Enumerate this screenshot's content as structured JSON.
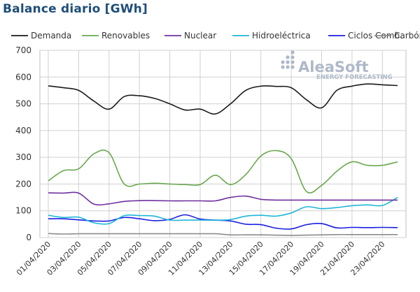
{
  "title": "Balance diario [GWh]",
  "logo": {
    "name": "AleaSoft",
    "tagline": "ENERGY FORECASTING",
    "color": "#aeb9c8"
  },
  "chart_data": {
    "type": "line",
    "title": "Balance diario [GWh]",
    "xlabel": "",
    "ylabel": "",
    "ylim": [
      0,
      700
    ],
    "yticks": [
      0,
      100,
      200,
      300,
      400,
      500,
      600,
      700
    ],
    "grid": true,
    "legend_position": "top",
    "x": [
      "01/04/2020",
      "02/04/2020",
      "03/04/2020",
      "04/04/2020",
      "05/04/2020",
      "06/04/2020",
      "07/04/2020",
      "08/04/2020",
      "09/04/2020",
      "10/04/2020",
      "11/04/2020",
      "12/04/2020",
      "13/04/2020",
      "14/04/2020",
      "15/04/2020",
      "16/04/2020",
      "17/04/2020",
      "18/04/2020",
      "19/04/2020",
      "20/04/2020",
      "21/04/2020",
      "22/04/2020",
      "23/04/2020",
      "24/04/2020"
    ],
    "xtick_labels": [
      "01/04/2020",
      "03/04/2020",
      "05/04/2020",
      "07/04/2020",
      "09/04/2020",
      "11/04/2020",
      "13/04/2020",
      "15/04/2020",
      "17/04/2020",
      "19/04/2020",
      "21/04/2020",
      "23/04/2020"
    ],
    "series": [
      {
        "name": "Demanda",
        "color": "#1a1a1a",
        "values": [
          567,
          560,
          550,
          510,
          480,
          527,
          530,
          520,
          500,
          477,
          480,
          462,
          500,
          550,
          566,
          565,
          560,
          515,
          485,
          550,
          566,
          574,
          571,
          568
        ]
      },
      {
        "name": "Renovables",
        "color": "#6aa84f",
        "values": [
          212,
          250,
          257,
          313,
          317,
          200,
          200,
          203,
          200,
          198,
          198,
          233,
          198,
          235,
          305,
          325,
          295,
          172,
          195,
          248,
          283,
          270,
          270,
          283
        ]
      },
      {
        "name": "Nuclear",
        "color": "#7030a0",
        "values": [
          167,
          166,
          166,
          125,
          126,
          135,
          138,
          138,
          137,
          137,
          137,
          137,
          150,
          155,
          143,
          140,
          140,
          140,
          140,
          140,
          140,
          140,
          140,
          140
        ]
      },
      {
        "name": "Hidroeléctrica",
        "color": "#1fb6d8",
        "values": [
          83,
          75,
          76,
          55,
          52,
          82,
          82,
          80,
          65,
          65,
          65,
          65,
          67,
          80,
          83,
          80,
          92,
          115,
          108,
          112,
          119,
          122,
          120,
          150
        ]
      },
      {
        "name": "Ciclos Comb.",
        "color": "#1a1ee0",
        "values": [
          70,
          70,
          66,
          62,
          62,
          75,
          70,
          63,
          68,
          85,
          69,
          65,
          62,
          50,
          48,
          35,
          32,
          48,
          52,
          36,
          38,
          37,
          38,
          37
        ]
      },
      {
        "name": "Carbón",
        "color": "#8c8c8c",
        "values": [
          15,
          13,
          14,
          14,
          14,
          14,
          14,
          14,
          14,
          14,
          14,
          14,
          10,
          10,
          10,
          9,
          8,
          9,
          10,
          11,
          11,
          11,
          11,
          11
        ]
      }
    ]
  }
}
